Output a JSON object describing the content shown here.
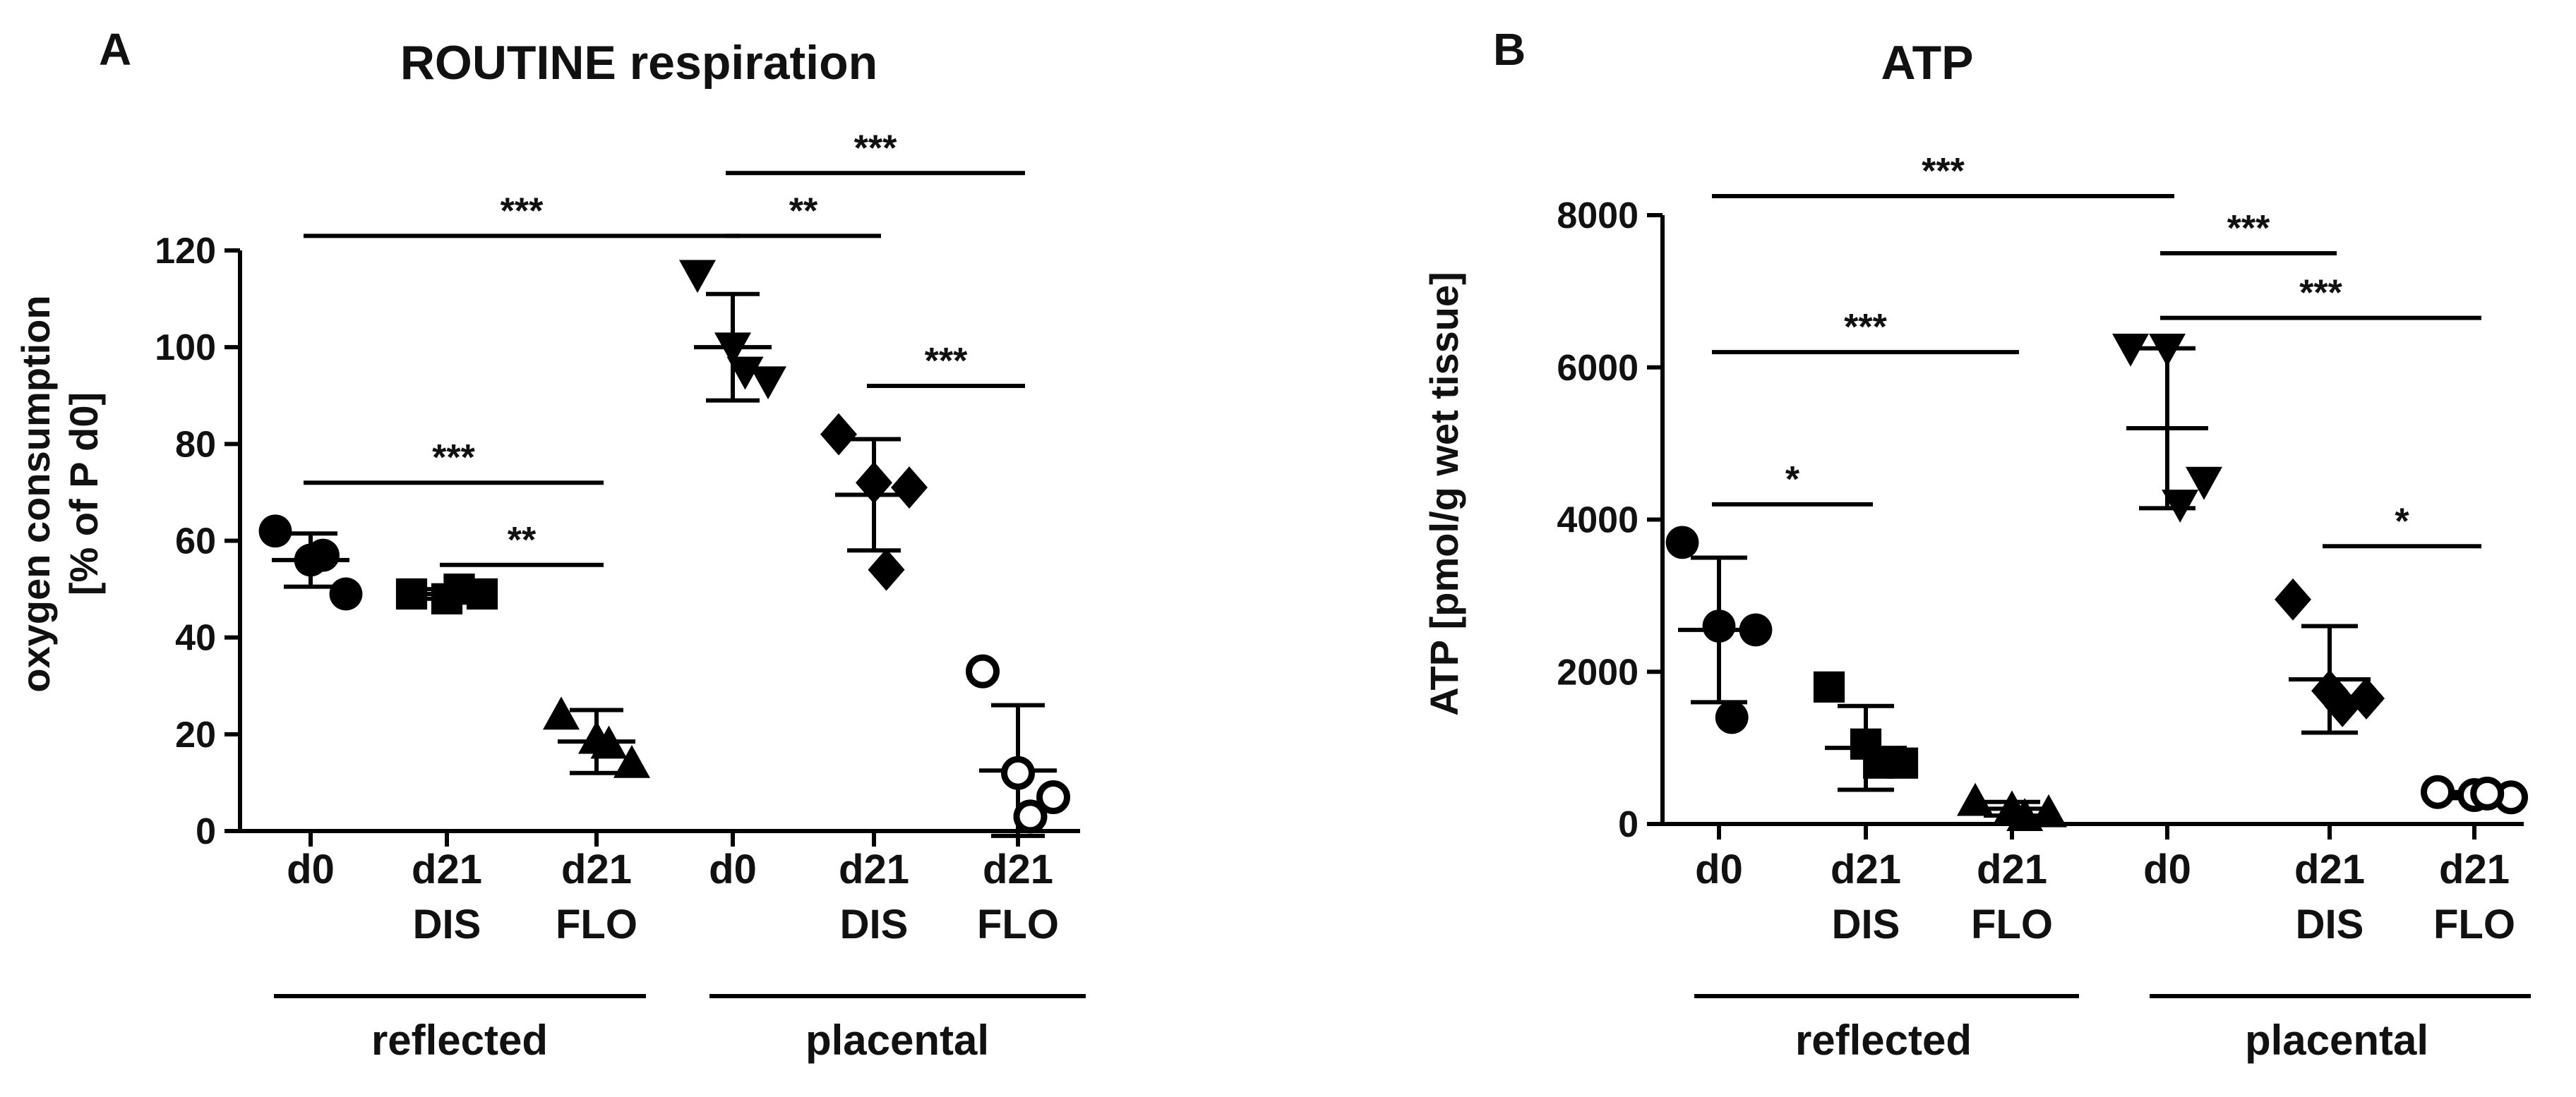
{
  "chart_data": [
    {
      "panel": "A",
      "type": "scatter",
      "title": "ROUTINE respiration",
      "ylabel_line1": "oxygen consumption",
      "ylabel_line2": "[% of P d0]",
      "ylim": [
        0,
        120
      ],
      "yticks": [
        "0",
        "20",
        "40",
        "60",
        "80",
        "100",
        "120"
      ],
      "categories": [
        {
          "line1": "d0",
          "line2": ""
        },
        {
          "line1": "d21",
          "line2": "DIS"
        },
        {
          "line1": "d21",
          "line2": "FLO"
        },
        {
          "line1": "d0",
          "line2": ""
        },
        {
          "line1": "d21",
          "line2": "DIS"
        },
        {
          "line1": "d21",
          "line2": "FLO"
        }
      ],
      "groups": [
        {
          "label": "reflected",
          "from": 0,
          "to": 2
        },
        {
          "label": "placental",
          "from": 3,
          "to": 5
        }
      ],
      "series": [
        {
          "name": "reflected d0",
          "marker": "circle",
          "values": [
            62,
            56,
            49,
            57
          ],
          "mean": 56,
          "sd": 5.5
        },
        {
          "name": "reflected d21 DIS",
          "marker": "square",
          "values": [
            49,
            48,
            49,
            50
          ],
          "mean": 49,
          "sd": 1
        },
        {
          "name": "reflected d21 FLO",
          "marker": "triangle-up",
          "values": [
            24,
            19,
            14,
            18
          ],
          "mean": 18.5,
          "sd": 6.5
        },
        {
          "name": "placental d0",
          "marker": "triangle-down",
          "values": [
            115,
            100,
            93,
            95
          ],
          "mean": 100,
          "sd": 11
        },
        {
          "name": "placental d21 DIS",
          "marker": "diamond",
          "values": [
            82,
            72,
            71,
            54
          ],
          "mean": 69.5,
          "sd": 11.5
        },
        {
          "name": "placental d21 FLO",
          "marker": "open-circle",
          "values": [
            33,
            12,
            7,
            3
          ],
          "mean": 12.5,
          "sd": 13.5
        }
      ],
      "significance": [
        {
          "from": 0,
          "to": 3,
          "y": 123,
          "label": "***"
        },
        {
          "from": 3,
          "to": 4,
          "y": 123,
          "label": "**"
        },
        {
          "from": 3,
          "to": 5,
          "y": 136,
          "label": "***"
        },
        {
          "from": 4,
          "to": 5,
          "y": 92,
          "label": "***"
        },
        {
          "from": 0,
          "to": 2,
          "y": 72,
          "label": "***"
        },
        {
          "from": 1,
          "to": 2,
          "y": 55,
          "label": "**"
        }
      ]
    },
    {
      "panel": "B",
      "type": "scatter",
      "title": "ATP",
      "ylabel_line1": "ATP [pmol/g wet tissue]",
      "ylabel_line2": "",
      "ylim": [
        0,
        8000
      ],
      "yticks": [
        "0",
        "2000",
        "4000",
        "6000",
        "8000"
      ],
      "categories": [
        {
          "line1": "d0",
          "line2": ""
        },
        {
          "line1": "d21",
          "line2": "DIS"
        },
        {
          "line1": "d21",
          "line2": "FLO"
        },
        {
          "line1": "d0",
          "line2": ""
        },
        {
          "line1": "d21",
          "line2": "DIS"
        },
        {
          "line1": "d21",
          "line2": "FLO"
        }
      ],
      "groups": [
        {
          "label": "reflected",
          "from": 0,
          "to": 2
        },
        {
          "label": "placental",
          "from": 3,
          "to": 5
        }
      ],
      "series": [
        {
          "name": "reflected d0",
          "marker": "circle",
          "values": [
            3700,
            2600,
            2550,
            1400
          ],
          "mean": 2550,
          "sd": 950
        },
        {
          "name": "reflected d21 DIS",
          "marker": "square",
          "values": [
            1800,
            1050,
            800,
            800
          ],
          "mean": 1000,
          "sd": 550
        },
        {
          "name": "reflected d21 FLO",
          "marker": "triangle-up",
          "values": [
            300,
            200,
            150,
            100
          ],
          "mean": 200,
          "sd": 90
        },
        {
          "name": "placental d0",
          "marker": "triangle-down",
          "values": [
            6250,
            6250,
            4500,
            4200
          ],
          "mean": 5200,
          "sd": 1050
        },
        {
          "name": "placental d21 DIS",
          "marker": "diamond",
          "values": [
            2950,
            1750,
            1650,
            1550
          ],
          "mean": 1900,
          "sd": 700
        },
        {
          "name": "placental d21 FLO",
          "marker": "open-circle",
          "values": [
            420,
            380,
            350,
            400
          ],
          "mean": 380,
          "sd": 40
        }
      ],
      "significance": [
        {
          "from": 0,
          "to": 3,
          "y": 8250,
          "label": "***"
        },
        {
          "from": 3,
          "to": 4,
          "y": 7500,
          "label": "***"
        },
        {
          "from": 3,
          "to": 5,
          "y": 6650,
          "label": "***"
        },
        {
          "from": 0,
          "to": 2,
          "y": 6200,
          "label": "***"
        },
        {
          "from": 0,
          "to": 1,
          "y": 4200,
          "label": "*"
        },
        {
          "from": 4,
          "to": 5,
          "y": 3650,
          "label": "*"
        }
      ]
    }
  ]
}
